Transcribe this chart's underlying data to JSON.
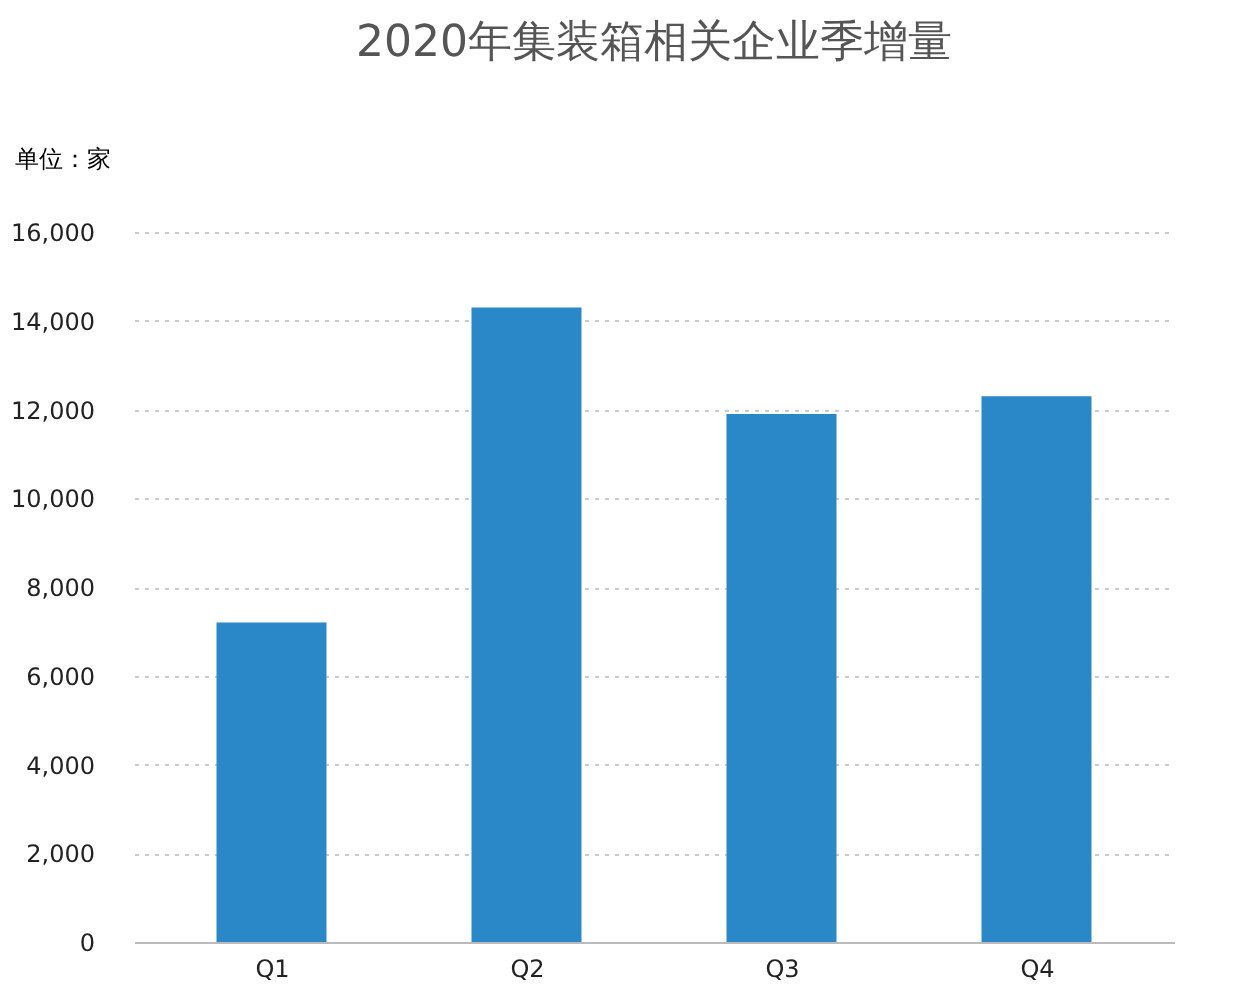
{
  "chart_data": {
    "type": "bar",
    "title": "2020年集装箱相关企业季增量",
    "ylabel": "单位：家",
    "categories": [
      "Q1",
      "Q2",
      "Q3",
      "Q4"
    ],
    "values": [
      7200,
      14300,
      11900,
      12300
    ],
    "color": "#2b88c8",
    "ylim": [
      0,
      16000
    ],
    "yticks": [
      0,
      {
        "value": 2000,
        "label": "2,000"
      },
      {
        "value": 4000,
        "label": "4,000"
      },
      {
        "value": 6000,
        "label": "6,000"
      },
      {
        "value": 8000,
        "label": "8,000"
      },
      {
        "value": 10000,
        "label": "10,000"
      },
      {
        "value": 12000,
        "label": "12,000"
      },
      {
        "value": 14000,
        "label": "14,000"
      },
      {
        "value": 16000,
        "label": "16,000"
      }
    ],
    "grid": "y"
  }
}
